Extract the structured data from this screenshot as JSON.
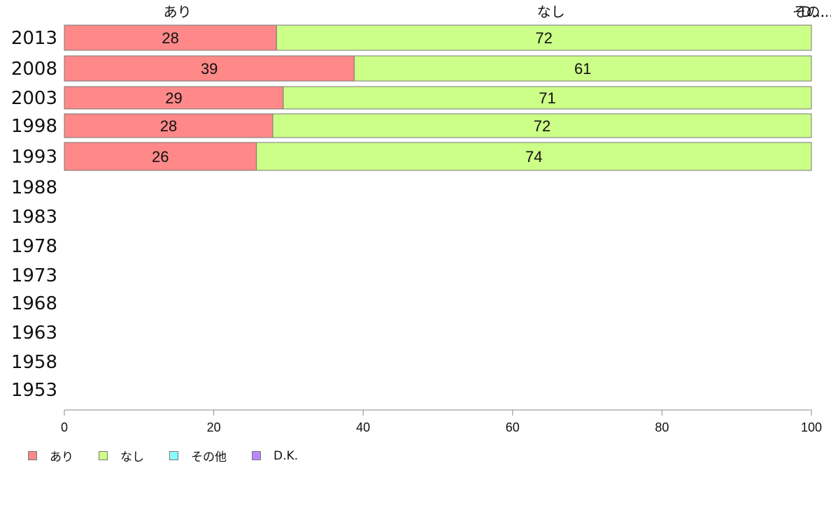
{
  "chart_data": {
    "type": "bar",
    "orientation": "horizontal",
    "stacked": true,
    "categories": [
      "2013",
      "2008",
      "2003",
      "1998",
      "1993",
      "1988",
      "1983",
      "1978",
      "1973",
      "1968",
      "1963",
      "1958",
      "1953"
    ],
    "series": [
      {
        "name": "あり",
        "color": "#ff8888",
        "values": [
          28.4,
          38.8,
          29.3,
          27.9,
          25.7,
          null,
          null,
          null,
          null,
          null,
          null,
          null,
          null
        ],
        "labels": [
          "28",
          "39",
          "29",
          "28",
          "26",
          "",
          "",
          "",
          "",
          "",
          "",
          "",
          ""
        ]
      },
      {
        "name": "なし",
        "color": "#ccff88",
        "values": [
          71.6,
          61.2,
          70.7,
          72.1,
          74.3,
          null,
          null,
          null,
          null,
          null,
          null,
          null,
          null
        ],
        "labels": [
          "72",
          "61",
          "71",
          "72",
          "74",
          "",
          "",
          "",
          "",
          "",
          "",
          "",
          ""
        ]
      },
      {
        "name": "その他",
        "color": "#88ffff",
        "values": [
          0,
          0,
          0,
          0,
          0,
          null,
          null,
          null,
          null,
          null,
          null,
          null,
          null
        ],
        "labels": [
          "",
          "",
          "",
          "",
          "",
          "",
          "",
          "",
          "",
          "",
          "",
          "",
          ""
        ]
      },
      {
        "name": "D.K.",
        "color": "#bb88ff",
        "values": [
          0,
          0,
          0,
          0,
          0,
          null,
          null,
          null,
          null,
          null,
          null,
          null,
          null
        ],
        "labels": [
          "",
          "",
          "",
          "",
          "",
          "",
          "",
          "",
          "",
          "",
          "",
          "",
          ""
        ]
      }
    ],
    "top_labels": [
      {
        "text": "あり",
        "at": 14.2
      },
      {
        "text": "なし",
        "at": 64.2
      },
      {
        "text": "その...",
        "at": 100
      },
      {
        "text": "D...",
        "at": 100
      }
    ],
    "xlim": [
      0,
      100
    ],
    "xticks": [
      "0",
      "20",
      "40",
      "60",
      "80",
      "100"
    ],
    "xlabel": "",
    "ylabel": "",
    "grid": false,
    "legend_position": "bottom-left"
  }
}
